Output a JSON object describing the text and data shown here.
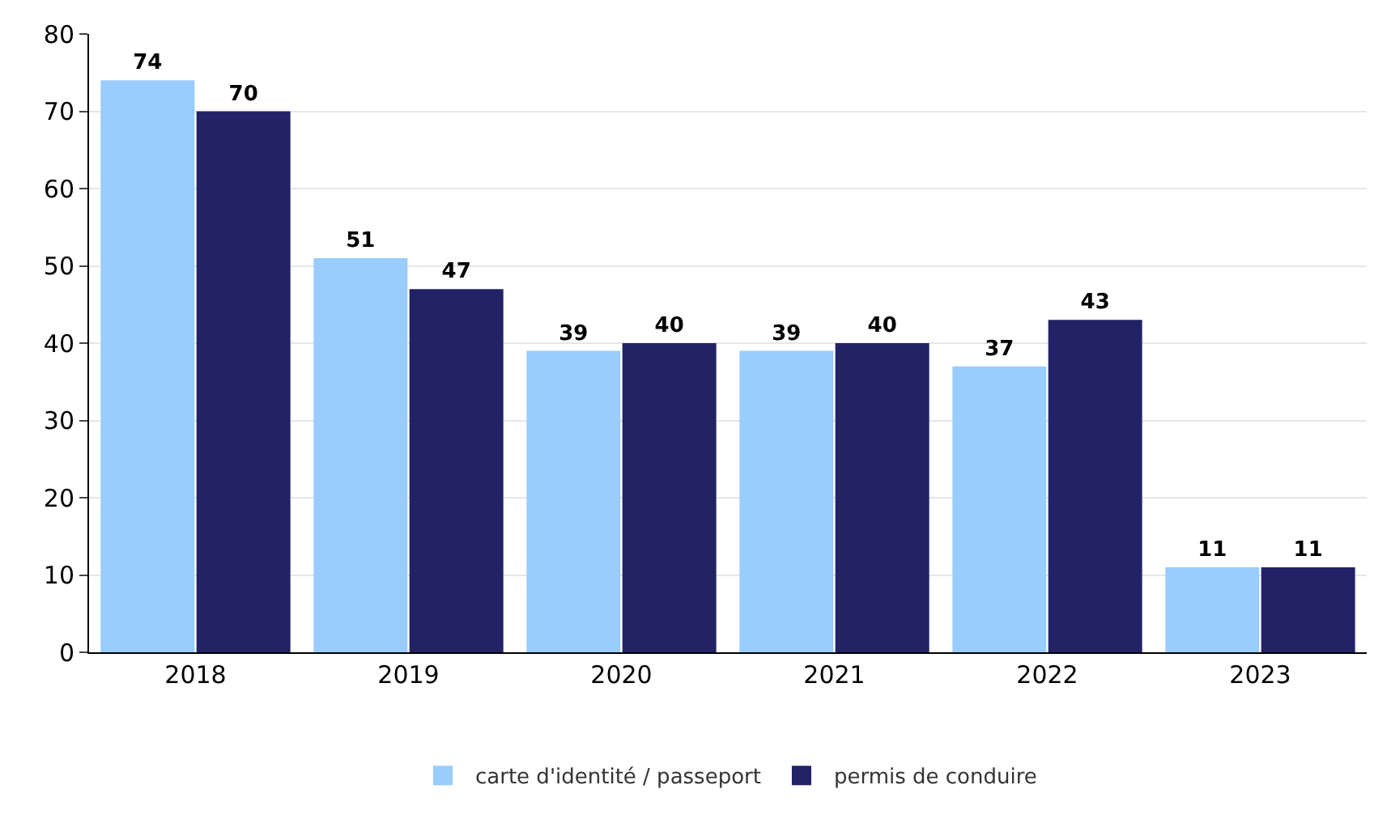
{
  "chart_data": {
    "type": "bar",
    "categories": [
      "2018",
      "2019",
      "2020",
      "2021",
      "2022",
      "2023"
    ],
    "series": [
      {
        "name": "carte d'identité / passeport",
        "color": "#99ccff",
        "values": [
          74,
          51,
          39,
          39,
          37,
          11
        ]
      },
      {
        "name": "permis de conduire",
        "color": "#222266",
        "values": [
          70,
          47,
          40,
          40,
          43,
          11
        ]
      }
    ],
    "ylim": [
      0,
      80
    ],
    "yticks": [
      0,
      10,
      20,
      30,
      40,
      50,
      60,
      70,
      80
    ],
    "grid": "y",
    "legend": "bottom",
    "data_labels": true
  }
}
